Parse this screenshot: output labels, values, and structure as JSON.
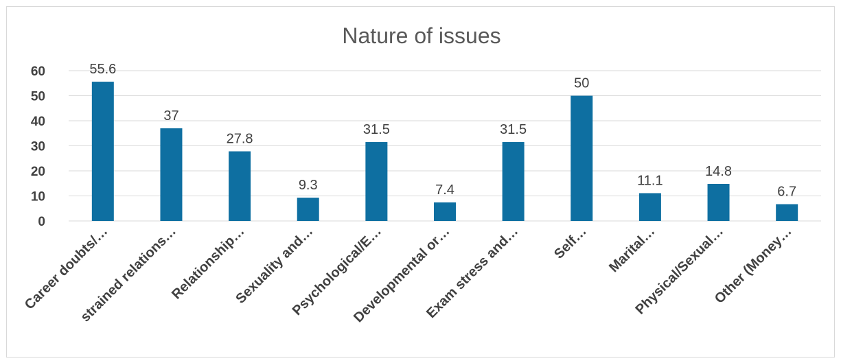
{
  "chart_data": {
    "type": "bar",
    "title": "Nature of issues",
    "categories": [
      "Career doubts/…",
      "strained relations…",
      "Relationship…",
      "Sexuality and…",
      "Psychological/E…",
      "Developmental or…",
      "Exam stress and…",
      "Self…",
      "Marital…",
      "Physical/Sexual…",
      "Other (Money…"
    ],
    "values": [
      55.6,
      37,
      27.8,
      9.3,
      31.5,
      7.4,
      31.5,
      50,
      11.1,
      14.8,
      6.7
    ],
    "data_labels": [
      "55.6",
      "37",
      "27.8",
      "9.3",
      "31.5",
      "7.4",
      "31.5",
      "50",
      "11.1",
      "14.8",
      "6.7"
    ],
    "yticks": [
      "0",
      "10",
      "20",
      "30",
      "40",
      "50",
      "60"
    ],
    "ylim": [
      0,
      60
    ],
    "grid": true,
    "bar_color": "#0E6FA1"
  }
}
